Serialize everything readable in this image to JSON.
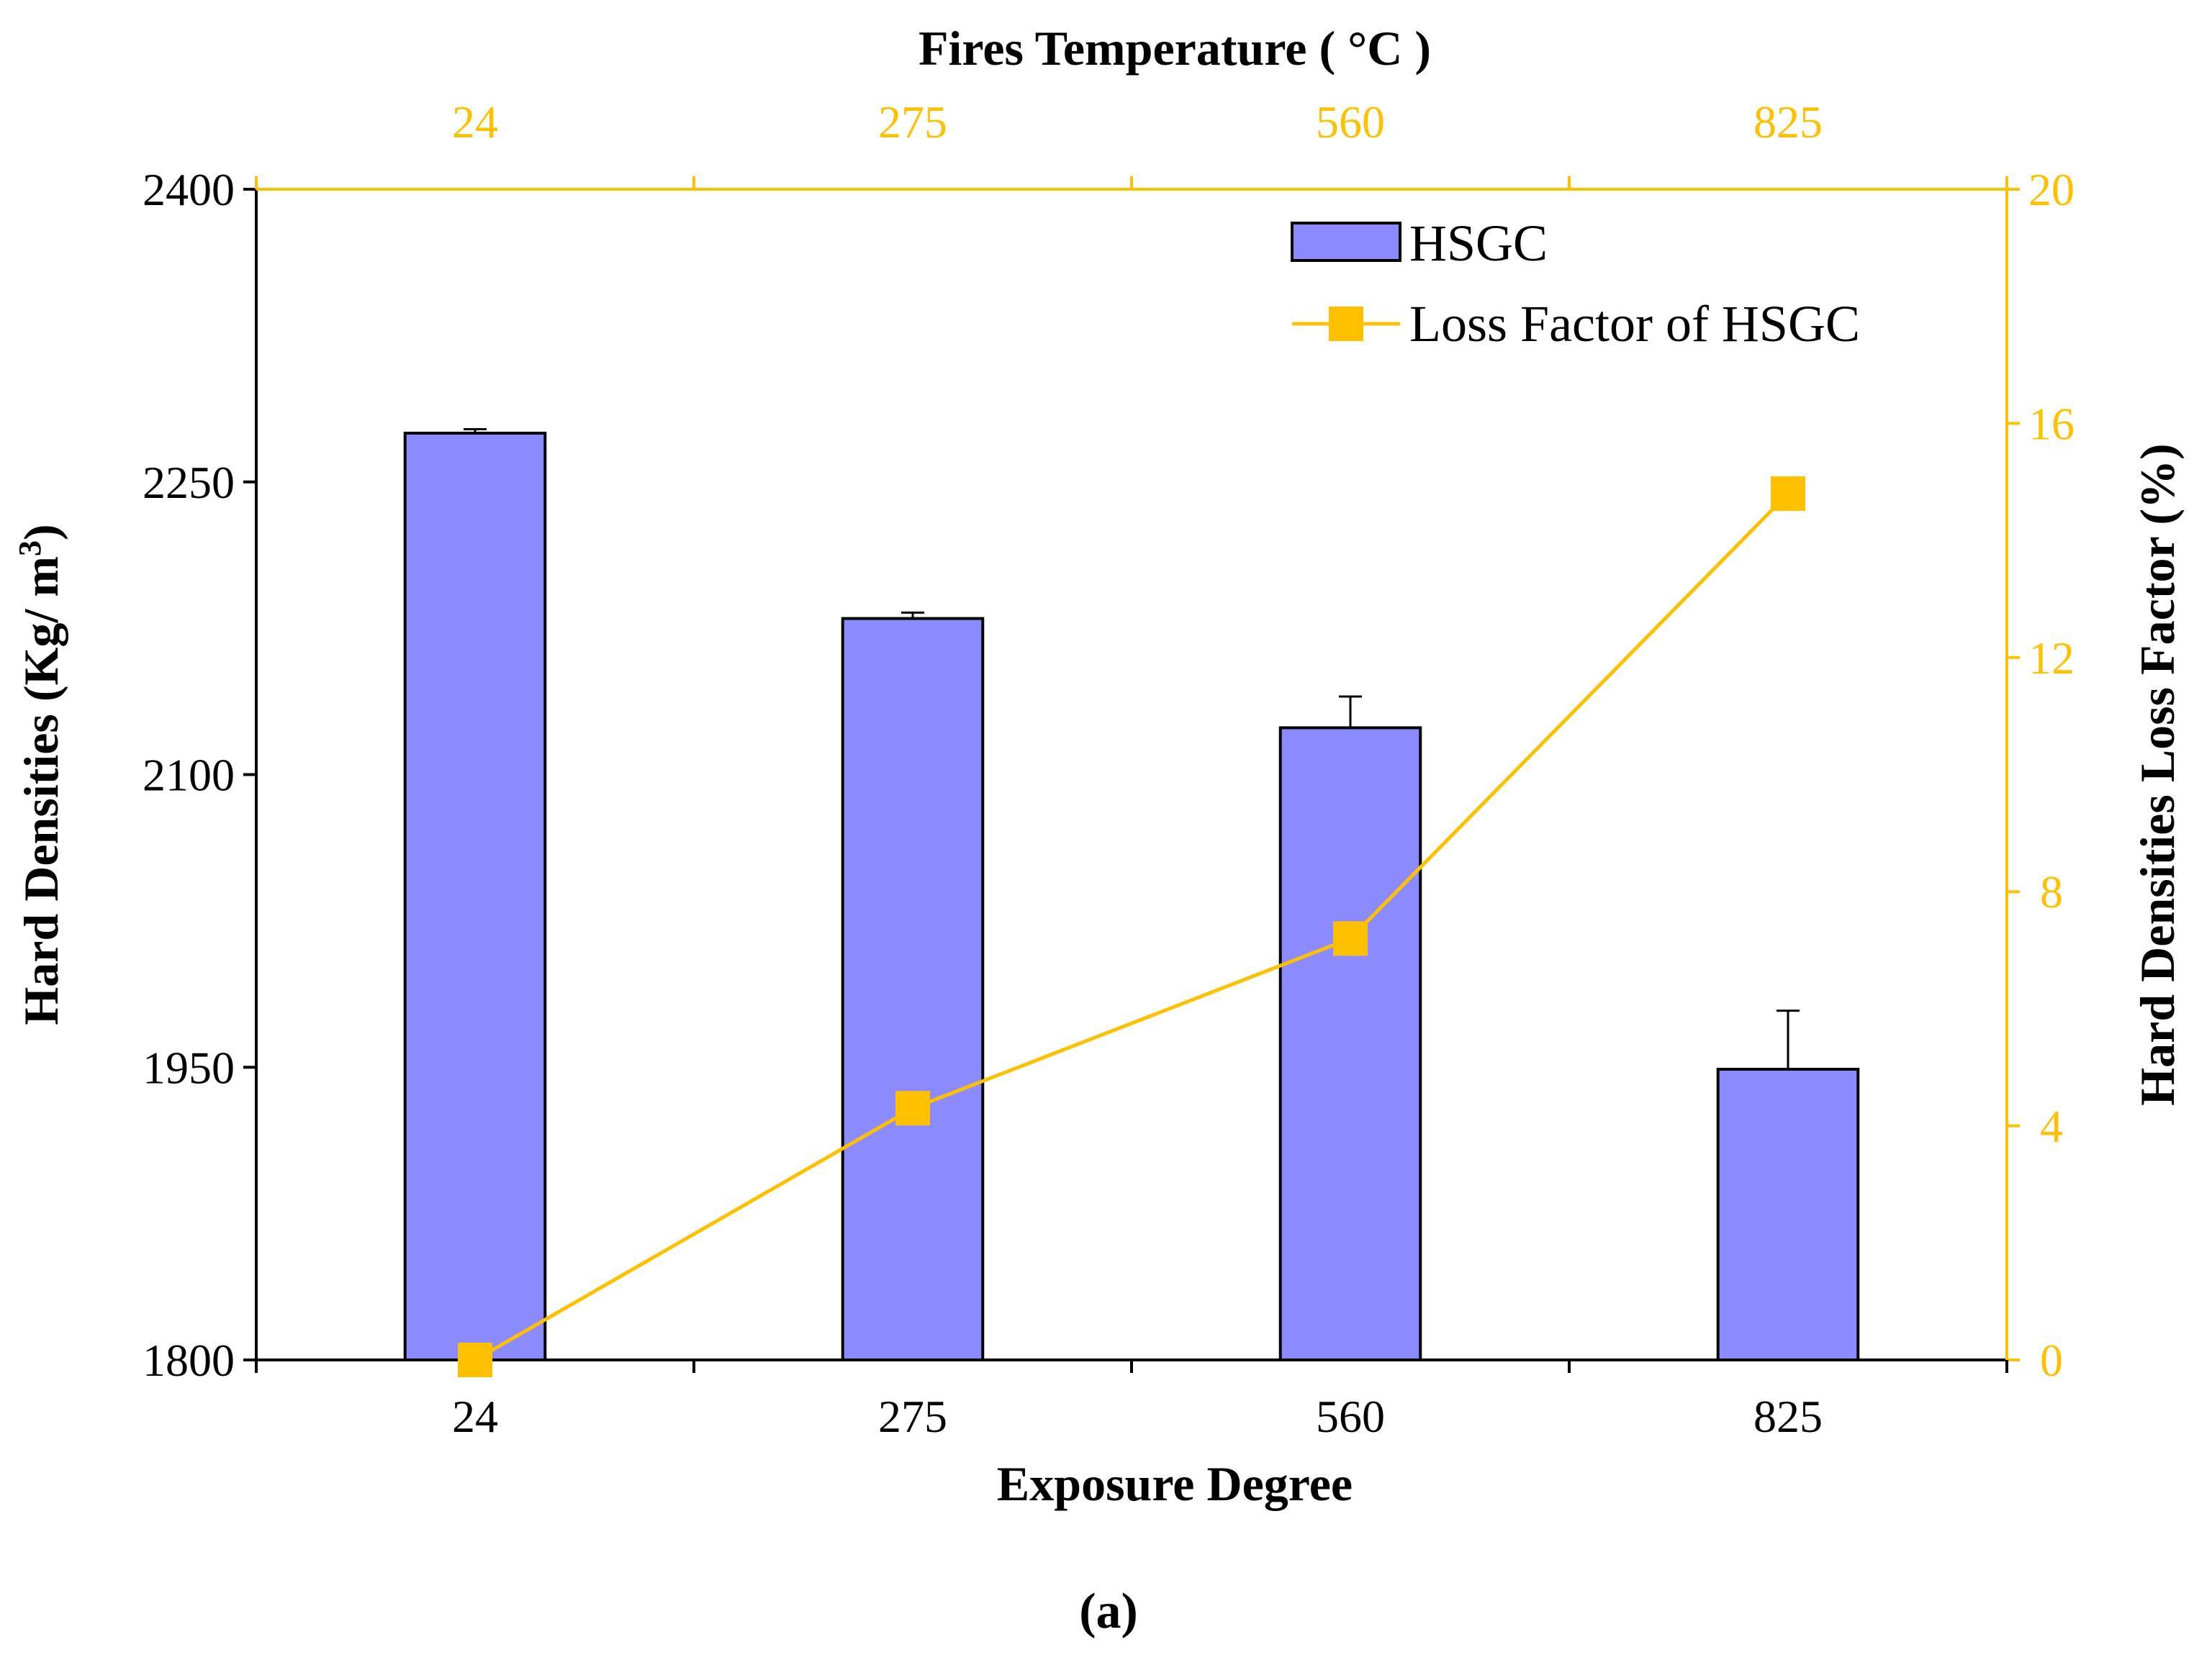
{
  "chart_data": {
    "type": "bar",
    "categories": [
      "24",
      "275",
      "560",
      "825"
    ],
    "xlabel": "Exposure Degree",
    "top_xlabel": "Fires Temperature ( °C )",
    "top_categories": [
      "24",
      "275",
      "560",
      "825"
    ],
    "ylabel": "Hard Densities (Kg/ m",
    "ylabel_sup": "3",
    "ylabel_close": ")",
    "y2label": "Hard Densities Loss Factor (%)",
    "ylim": [
      1800,
      2400
    ],
    "yticks": [
      "1800",
      "1950",
      "2100",
      "2250",
      "2400"
    ],
    "y2lim": [
      0,
      20
    ],
    "y2ticks": [
      "0",
      "4",
      "8",
      "12",
      "16",
      "20"
    ],
    "series": [
      {
        "name": "HSGC",
        "kind": "bar",
        "values": [
          2275,
          2180,
          2124,
          1949
        ],
        "errors": [
          2,
          3,
          16,
          30
        ]
      },
      {
        "name": "Loss Factor of HSGC",
        "kind": "line",
        "axis": "right",
        "values": [
          0,
          4.3,
          7.2,
          14.8
        ]
      }
    ],
    "legend": {
      "position": "top-right"
    },
    "grid": false,
    "caption": "(a)",
    "colors": {
      "bar": "#8B8BFF",
      "line": "#FFC000",
      "axis": "#000000",
      "top_axis": "#FFC000"
    }
  }
}
